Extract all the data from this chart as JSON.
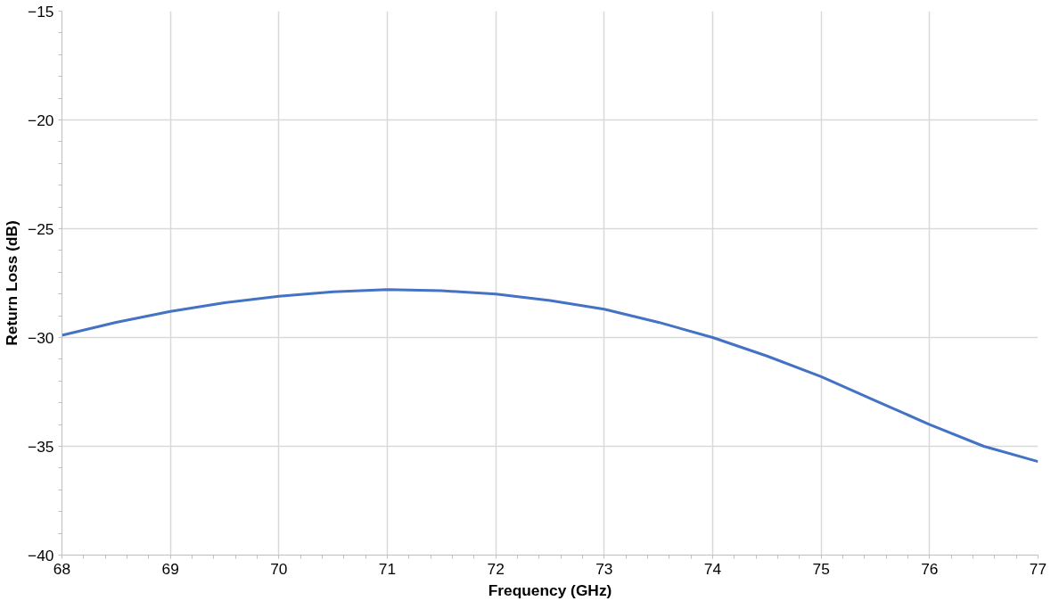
{
  "chart_data": {
    "type": "line",
    "xlabel": "Frequency (GHz)",
    "ylabel": "Return Loss (dB)",
    "x": [
      68,
      68.5,
      69,
      69.5,
      70,
      70.5,
      71,
      71.5,
      72,
      72.5,
      73,
      73.5,
      74,
      74.5,
      75,
      75.5,
      76,
      76.5,
      77
    ],
    "series": [
      {
        "color": "#4472c4",
        "values": [
          -29.9,
          -29.3,
          -28.8,
          -28.4,
          -28.1,
          -27.9,
          -27.8,
          -27.85,
          -28.0,
          -28.3,
          -28.7,
          -29.3,
          -30.0,
          -30.85,
          -31.8,
          -32.9,
          -34.0,
          -35.0,
          -35.7
        ]
      }
    ],
    "xlim": [
      68,
      77
    ],
    "xticks": [
      68,
      69,
      70,
      71,
      72,
      73,
      74,
      75,
      76,
      77
    ],
    "ylim": [
      -40,
      -15
    ],
    "yticks": [
      -40,
      -35,
      -30,
      -25,
      -20,
      -15
    ],
    "grid": true,
    "marker": "none",
    "line_style": "solid"
  }
}
